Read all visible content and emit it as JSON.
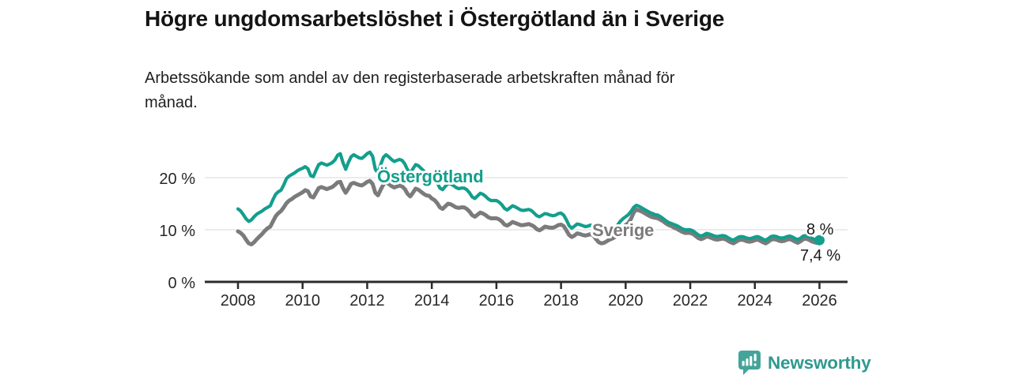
{
  "header": {
    "title": "Högre ungdomsarbetslöshet i Östergötland än i Sverige",
    "subtitle_lines": [
      "Arbetssökande som andel av den registerbaserade arbetskraften månad för",
      "månad."
    ]
  },
  "chart_data": {
    "type": "line",
    "title": "Högre ungdomsarbetslöshet i Östergötland än i Sverige",
    "subtitle": "Arbetssökande som andel av den registerbaserade arbetskraften månad för månad.",
    "unit": "%",
    "x_start_year": 2008,
    "x_end_year": 2026,
    "points_per_year": 12,
    "x_ticks": [
      2008,
      2010,
      2012,
      2014,
      2016,
      2018,
      2020,
      2022,
      2024,
      2026
    ],
    "y_ticks": [
      {
        "value": 0,
        "label": "0 %"
      },
      {
        "value": 10,
        "label": "10 %"
      },
      {
        "value": 20,
        "label": "20 %"
      }
    ],
    "ylim": [
      0,
      27
    ],
    "grid": "horizontal",
    "legend": "inline-labels-on-chart",
    "series": [
      {
        "name": "Östergötland",
        "color": "#149e8d",
        "end_label": "8 %",
        "end_value": 8.0,
        "values": [
          14.0,
          13.6,
          12.9,
          12.1,
          11.6,
          11.9,
          12.5,
          13.0,
          13.3,
          13.6,
          14.0,
          14.3,
          14.6,
          15.8,
          16.8,
          17.3,
          17.6,
          18.6,
          19.8,
          20.3,
          20.6,
          20.9,
          21.3,
          21.6,
          21.8,
          22.1,
          21.7,
          20.4,
          20.2,
          21.4,
          22.5,
          22.8,
          22.6,
          22.4,
          22.6,
          22.9,
          23.4,
          24.3,
          24.6,
          22.9,
          21.6,
          22.9,
          24.0,
          24.4,
          24.1,
          23.8,
          23.7,
          24.1,
          24.6,
          24.9,
          24.1,
          21.6,
          20.9,
          22.5,
          23.9,
          24.4,
          24.0,
          23.5,
          23.1,
          23.3,
          23.5,
          23.3,
          22.6,
          21.5,
          20.9,
          21.7,
          22.5,
          22.3,
          21.8,
          21.3,
          20.9,
          20.7,
          20.2,
          19.8,
          19.0,
          18.0,
          17.7,
          18.3,
          18.9,
          18.8,
          18.5,
          18.1,
          17.9,
          18.0,
          18.0,
          17.7,
          17.1,
          16.3,
          16.0,
          16.5,
          17.0,
          16.8,
          16.4,
          15.9,
          15.6,
          15.6,
          15.6,
          15.3,
          14.8,
          14.1,
          13.8,
          14.2,
          14.6,
          14.4,
          14.1,
          13.8,
          13.7,
          13.8,
          13.9,
          13.7,
          13.2,
          12.7,
          12.5,
          12.8,
          13.1,
          13.0,
          12.8,
          12.7,
          12.8,
          13.1,
          13.2,
          12.8,
          11.9,
          10.8,
          10.3,
          10.7,
          11.1,
          11.0,
          10.8,
          10.6,
          10.7,
          10.9,
          10.5,
          9.8,
          9.2,
          9.0,
          9.1,
          9.4,
          9.7,
          9.9,
          10.3,
          10.9,
          11.6,
          12.1,
          12.5,
          12.9,
          13.5,
          14.3,
          14.7,
          14.5,
          14.2,
          13.9,
          13.6,
          13.3,
          13.1,
          12.9,
          12.8,
          12.5,
          12.1,
          11.7,
          11.4,
          11.2,
          11.0,
          10.8,
          10.5,
          10.2,
          10.0,
          10.0,
          10.0,
          9.8,
          9.4,
          9.0,
          8.8,
          9.0,
          9.3,
          9.2,
          9.0,
          8.8,
          8.7,
          8.8,
          8.9,
          8.8,
          8.5,
          8.2,
          8.0,
          8.3,
          8.6,
          8.7,
          8.6,
          8.4,
          8.3,
          8.4,
          8.6,
          8.7,
          8.5,
          8.2,
          8.0,
          8.3,
          8.7,
          8.8,
          8.7,
          8.5,
          8.4,
          8.5,
          8.7,
          8.8,
          8.6,
          8.3,
          8.1,
          8.4,
          8.8,
          8.9,
          8.7,
          8.4,
          8.2,
          8.1,
          8.0
        ]
      },
      {
        "name": "Sverige",
        "color": "#7b7b7b",
        "end_label": "7,4 %",
        "end_value": 7.4,
        "values": [
          9.7,
          9.4,
          8.9,
          8.1,
          7.4,
          7.2,
          7.6,
          8.2,
          8.7,
          9.2,
          9.8,
          10.3,
          10.6,
          11.6,
          12.6,
          13.2,
          13.6,
          14.3,
          15.1,
          15.6,
          15.9,
          16.3,
          16.6,
          16.9,
          17.2,
          17.6,
          17.4,
          16.4,
          16.2,
          17.1,
          18.0,
          18.2,
          18.0,
          17.8,
          18.0,
          18.2,
          18.6,
          19.1,
          19.2,
          18.0,
          17.1,
          17.9,
          18.8,
          19.0,
          18.8,
          18.6,
          18.5,
          18.8,
          19.2,
          19.4,
          18.8,
          17.1,
          16.6,
          17.7,
          18.7,
          19.1,
          18.8,
          18.4,
          18.1,
          18.3,
          18.5,
          18.3,
          17.8,
          16.9,
          16.4,
          17.1,
          17.9,
          17.7,
          17.3,
          16.9,
          16.6,
          16.5,
          16.0,
          15.7,
          15.1,
          14.3,
          14.0,
          14.5,
          15.0,
          14.9,
          14.6,
          14.3,
          14.2,
          14.3,
          14.3,
          14.0,
          13.5,
          12.8,
          12.5,
          12.9,
          13.3,
          13.1,
          12.8,
          12.4,
          12.2,
          12.2,
          12.2,
          12.0,
          11.6,
          11.0,
          10.8,
          11.1,
          11.5,
          11.3,
          11.1,
          10.9,
          10.9,
          11.0,
          11.1,
          10.9,
          10.6,
          10.1,
          9.9,
          10.2,
          10.6,
          10.5,
          10.4,
          10.4,
          10.6,
          10.9,
          11.0,
          10.7,
          9.9,
          9.0,
          8.6,
          8.9,
          9.3,
          9.2,
          9.0,
          8.9,
          9.0,
          9.2,
          8.9,
          8.2,
          7.6,
          7.4,
          7.5,
          7.8,
          8.1,
          8.3,
          8.6,
          9.1,
          9.8,
          10.4,
          10.9,
          11.3,
          12.1,
          13.3,
          13.9,
          13.7,
          13.5,
          13.2,
          12.9,
          12.6,
          12.4,
          12.3,
          12.2,
          11.9,
          11.6,
          11.2,
          10.9,
          10.7,
          10.4,
          10.2,
          9.9,
          9.6,
          9.4,
          9.4,
          9.4,
          9.2,
          8.8,
          8.4,
          8.2,
          8.4,
          8.7,
          8.6,
          8.4,
          8.2,
          8.1,
          8.2,
          8.3,
          8.2,
          7.9,
          7.6,
          7.4,
          7.7,
          8.0,
          8.1,
          8.0,
          7.8,
          7.7,
          7.8,
          8.0,
          8.1,
          7.9,
          7.6,
          7.4,
          7.7,
          8.1,
          8.2,
          8.1,
          7.9,
          7.8,
          7.9,
          8.1,
          8.2,
          8.0,
          7.7,
          7.5,
          7.8,
          8.2,
          8.3,
          8.1,
          7.8,
          7.6,
          7.5,
          7.4
        ]
      }
    ]
  },
  "footer": {
    "brand": "Newsworthy"
  },
  "colors": {
    "accent_teal": "#149e8d",
    "line_gray": "#7b7b7b",
    "brand_teal": "#2f998f",
    "logo_teal": "#45a49a",
    "axis": "#2b2b2b",
    "grid": "#e0e0e0",
    "text": "#141414"
  }
}
